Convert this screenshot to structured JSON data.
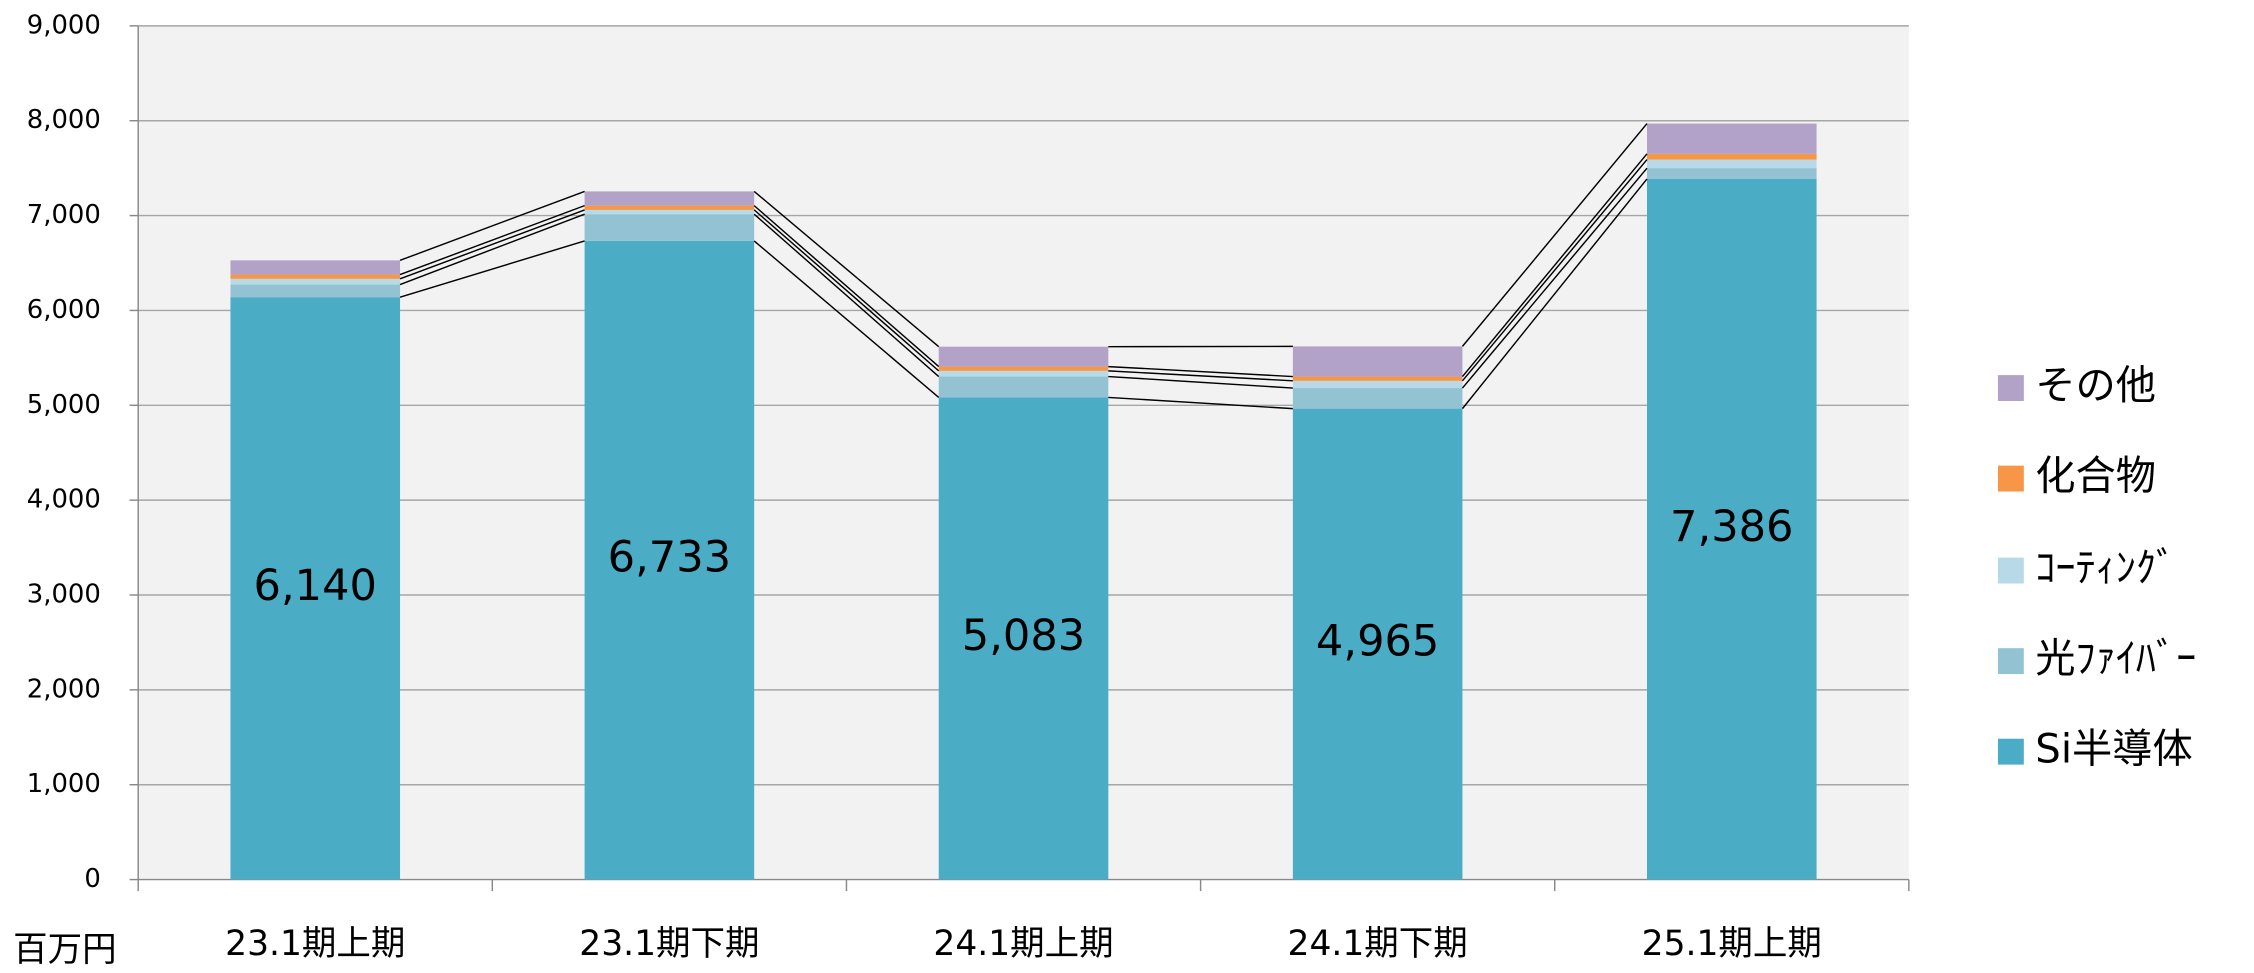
{
  "chart_data": {
    "type": "stacked_bar",
    "y_label": "百万円",
    "categories": [
      "23.1期上期",
      "23.1期下期",
      "24.1期上期",
      "24.1期下期",
      "25.1期上期"
    ],
    "series": [
      {
        "name": "Si半導体",
        "color": "#4bacc6",
        "values": [
          6140,
          6733,
          5083,
          4965,
          7386
        ],
        "value_labels": [
          "6,140",
          "6,733",
          "5,083",
          "4,965",
          "7,386"
        ]
      },
      {
        "name": "光ﾌｧｲﾊﾞｰ",
        "color": "#93c3d3",
        "values": [
          133,
          282,
          220,
          217,
          114
        ]
      },
      {
        "name": "ｺｰﾃｨﾝｸﾞ",
        "color": "#b7d9e8",
        "values": [
          60,
          45,
          60,
          76,
          91
        ]
      },
      {
        "name": "化合物",
        "color": "#f79646",
        "values": [
          45,
          45,
          45,
          45,
          60
        ]
      },
      {
        "name": "その他",
        "color": "#b2a2c7",
        "values": [
          150,
          150,
          210,
          318,
          319
        ]
      }
    ],
    "ylim": [
      0,
      9000
    ],
    "yticks": [
      0,
      {
        "value": 1000,
        "label": "1,000"
      },
      {
        "value": 2000,
        "label": "2,000"
      },
      {
        "value": 3000,
        "label": "3,000"
      },
      {
        "value": 4000,
        "label": "4,000"
      },
      {
        "value": 5000,
        "label": "5,000"
      },
      {
        "value": 6000,
        "label": "6,000"
      },
      {
        "value": 7000,
        "label": "7,000"
      },
      {
        "value": 8000,
        "label": "8,000"
      },
      {
        "value": 9000,
        "label": "9,000"
      }
    ],
    "grid": true,
    "legend": "right"
  }
}
